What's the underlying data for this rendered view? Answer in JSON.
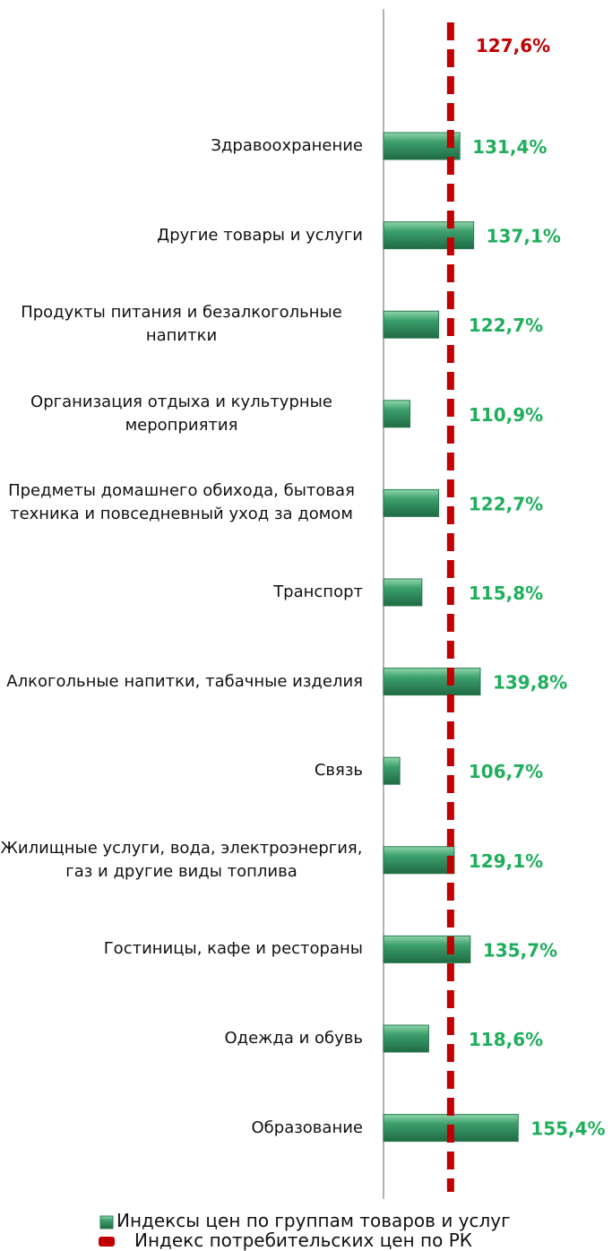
{
  "chart_data": {
    "type": "bar",
    "orientation": "horizontal",
    "categories": [
      "Здравоохранение",
      "Другие товары и услуги",
      "Продукты питания и безалкогольные напитки",
      "Организация отдыха и культурные мероприятия",
      "Предметы домашнего обихода, бытовая техника и повседневный уход за домом",
      "Транспорт",
      "Алкогольные напитки, табачные изделия",
      "Связь",
      "Жилищные услуги, вода, электроэнергия, газ и другие виды топлива",
      "Гостиницы, кафе и рестораны",
      "Одежда и обувь",
      "Образование"
    ],
    "series": [
      {
        "name": "Индексы цен по группам товаров и услуг",
        "color": "#3c9f6c",
        "label_color": "#1fae5c",
        "values": [
          131.4,
          137.1,
          122.7,
          110.9,
          122.7,
          115.8,
          139.8,
          106.7,
          129.1,
          135.7,
          118.6,
          155.4
        ],
        "value_labels": [
          "131,4%",
          "137,1%",
          "122,7%",
          "110,9%",
          "122,7%",
          "115,8%",
          "139,8%",
          "106,7%",
          "129,1%",
          "135,7%",
          "118,6%",
          "155,4%"
        ]
      }
    ],
    "reference": {
      "name": "Индекс потребительских цен по РК",
      "value": 127.6,
      "value_label": "127,6%",
      "color": "#c00000"
    },
    "xlim": [
      100,
      194
    ]
  }
}
